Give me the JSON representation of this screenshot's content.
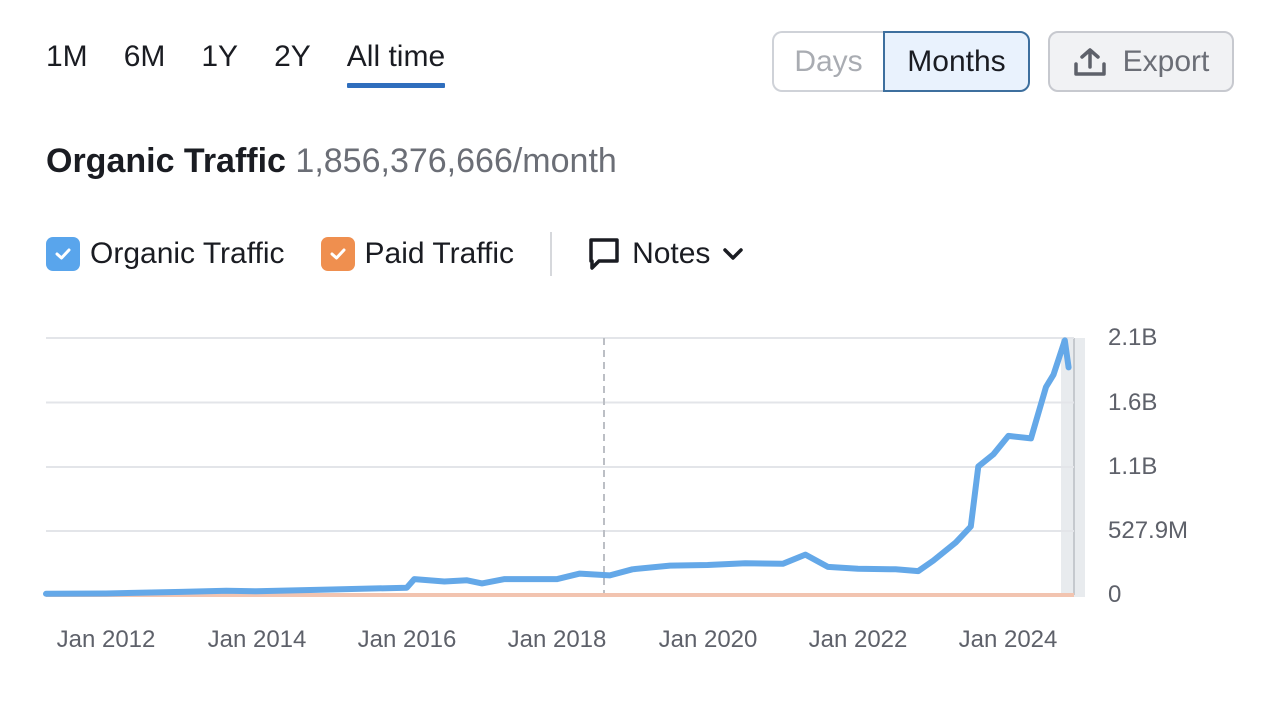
{
  "periods": [
    {
      "label": "1M",
      "active": false
    },
    {
      "label": "6M",
      "active": false
    },
    {
      "label": "1Y",
      "active": false
    },
    {
      "label": "2Y",
      "active": false
    },
    {
      "label": "All time",
      "active": true
    }
  ],
  "granularity": {
    "days_label": "Days",
    "months_label": "Months",
    "selected": "Months"
  },
  "export": {
    "label": "Export",
    "icon": "upload-icon"
  },
  "header": {
    "title": "Organic Traffic",
    "value": "1,856,376,666/month"
  },
  "legend": {
    "organic": {
      "label": "Organic Traffic",
      "checked": true,
      "color": "#59a5ec"
    },
    "paid": {
      "label": "Paid Traffic",
      "checked": true,
      "color": "#ef8f4f"
    },
    "notes": {
      "label": "Notes",
      "icon": "comment-icon",
      "chevron": "chevron-down-icon"
    }
  },
  "colors": {
    "accent": "#2f6ebd",
    "organic_line": "#64a8e8",
    "paid_line": "#f2c4b0",
    "grid": "#e3e5e9"
  },
  "chart_data": {
    "type": "line",
    "title": "Organic Traffic",
    "xlabel": "",
    "ylabel": "",
    "y_ticks": [
      "0",
      "527.9M",
      "1.1B",
      "1.6B",
      "2.1B"
    ],
    "x_ticks": [
      "Jan 2012",
      "Jan 2014",
      "Jan 2016",
      "Jan 2018",
      "Jan 2020",
      "Jan 2022",
      "Jan 2024"
    ],
    "ylim": [
      0,
      2100000000
    ],
    "grid": true,
    "legend_position": "top",
    "annotation": "dashed vertical marker near mid 2018",
    "series": [
      {
        "name": "Organic Traffic",
        "x": [
          2011.2,
          2012.0,
          2013.0,
          2013.6,
          2014.0,
          2015.0,
          2016.0,
          2016.1,
          2016.5,
          2016.8,
          2017.0,
          2017.3,
          2018.0,
          2018.3,
          2018.7,
          2019.0,
          2019.5,
          2020.0,
          2020.5,
          2021.0,
          2021.3,
          2021.6,
          2022.0,
          2022.5,
          2022.8,
          2023.0,
          2023.3,
          2023.5,
          2023.6,
          2023.8,
          2024.0,
          2024.3,
          2024.5,
          2024.6,
          2024.75,
          2024.8
        ],
        "values": [
          10000000,
          12000000,
          25000000,
          35000000,
          30000000,
          45000000,
          60000000,
          130000000,
          110000000,
          120000000,
          95000000,
          130000000,
          130000000,
          175000000,
          160000000,
          210000000,
          240000000,
          245000000,
          260000000,
          255000000,
          330000000,
          230000000,
          215000000,
          210000000,
          195000000,
          280000000,
          430000000,
          560000000,
          1050000000,
          1150000000,
          1300000000,
          1280000000,
          1700000000,
          1800000000,
          2080000000,
          1860000000
        ]
      },
      {
        "name": "Paid Traffic",
        "x": [
          2011.2,
          2024.8
        ],
        "values": [
          0,
          0
        ]
      }
    ]
  }
}
